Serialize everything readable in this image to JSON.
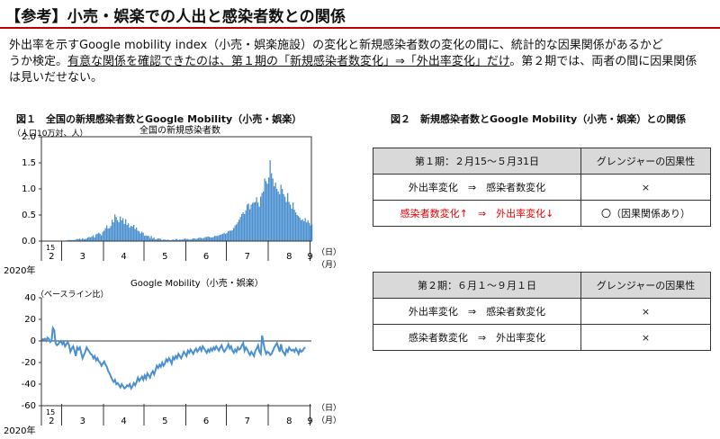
{
  "header": {
    "title": "【参考】小売・娯楽での人出と感染者数との関係",
    "intro_1": "外出率を示すGoogle mobility index（小売・娯楽施設）の変化と新規感染者数の変化の間に、統計的な因果関係があるかど",
    "intro_2a": "うか検定。",
    "intro_2b": "有意な関係を確認できたのは、第１期の「新規感染者数変化」⇒「外出率変化」だけ",
    "intro_2c": "。第２期では、両者の間に因果関係",
    "intro_3": "は見いだせない。"
  },
  "figure1": {
    "title": "図１　全国の新規感染者数とGoogle Mobility（小売・娯楽）",
    "year_label": "2020年",
    "day_label": "（日）",
    "month_unit_label": "（月）"
  },
  "figure2": {
    "title": "図２　新規感染者数とGoogle Mobility（小売・娯楽）との関係",
    "table1": {
      "headers": [
        "第１期：２月15～５月31日",
        "グレンジャーの因果性"
      ],
      "rows": [
        {
          "relation": "外出率変化　⇒　感染者数変化",
          "result": "×"
        },
        {
          "relation": "感染者数変化↑　⇒　外出率変化↓",
          "result": "〇（因果関係あり）"
        }
      ]
    },
    "table2": {
      "headers": [
        "第２期：６月１～９月１日",
        "グレンジャーの因果性"
      ],
      "rows": [
        {
          "relation": "外出率変化　⇒　感染者数変化",
          "result": "×"
        },
        {
          "relation": "感染者数変化　⇒　外出率変化",
          "result": "×"
        }
      ]
    }
  },
  "chart_data": [
    {
      "type": "bar",
      "title": "全国の新規感染者数",
      "ylabel": "（人口10万対、人）",
      "ylim": [
        0,
        2.0
      ],
      "yticks": [
        "0.0",
        "0.5",
        "1.0",
        "1.5",
        "2.0"
      ],
      "x_first_day_label": "15",
      "month_labels": [
        "2",
        "3",
        "4",
        "5",
        "6",
        "7",
        "8",
        "9"
      ],
      "month_start_days": [
        0,
        15,
        46,
        76,
        107,
        137,
        168,
        199
      ],
      "x_range": [
        0,
        200
      ],
      "color": "#4a8fd0",
      "grid": false,
      "values": [
        0.0,
        0.0,
        0.0,
        0.0,
        0.0,
        0.0,
        0.0,
        0.0,
        0.0,
        0.0,
        0.0,
        0.0,
        0.0,
        0.0,
        0.0,
        0.0,
        0.0,
        0.0,
        0.01,
        0.02,
        0.02,
        0.02,
        0.02,
        0.02,
        0.02,
        0.03,
        0.04,
        0.04,
        0.05,
        0.03,
        0.05,
        0.04,
        0.04,
        0.05,
        0.07,
        0.08,
        0.07,
        0.09,
        0.11,
        0.07,
        0.13,
        0.14,
        0.16,
        0.14,
        0.11,
        0.18,
        0.2,
        0.25,
        0.3,
        0.24,
        0.25,
        0.29,
        0.41,
        0.36,
        0.51,
        0.46,
        0.4,
        0.36,
        0.47,
        0.4,
        0.44,
        0.33,
        0.42,
        0.31,
        0.34,
        0.26,
        0.29,
        0.28,
        0.31,
        0.23,
        0.26,
        0.2,
        0.19,
        0.15,
        0.18,
        0.16,
        0.1,
        0.11,
        0.1,
        0.1,
        0.06,
        0.1,
        0.05,
        0.07,
        0.03,
        0.04,
        0.05,
        0.05,
        0.04,
        0.02,
        0.03,
        0.03,
        0.02,
        0.03,
        0.02,
        0.02,
        0.02,
        0.03,
        0.02,
        0.04,
        0.04,
        0.02,
        0.03,
        0.03,
        0.03,
        0.04,
        0.05,
        0.04,
        0.04,
        0.03,
        0.03,
        0.04,
        0.05,
        0.05,
        0.04,
        0.05,
        0.06,
        0.07,
        0.06,
        0.05,
        0.06,
        0.08,
        0.08,
        0.09,
        0.08,
        0.07,
        0.07,
        0.08,
        0.1,
        0.1,
        0.1,
        0.11,
        0.12,
        0.13,
        0.14,
        0.16,
        0.14,
        0.16,
        0.19,
        0.2,
        0.2,
        0.21,
        0.25,
        0.3,
        0.32,
        0.36,
        0.41,
        0.46,
        0.52,
        0.55,
        0.52,
        0.59,
        0.7,
        0.72,
        0.61,
        0.7,
        0.73,
        0.74,
        0.75,
        0.84,
        0.74,
        0.66,
        0.85,
        0.92,
        0.95,
        1.2,
        1.15,
        1.1,
        1.22,
        1.55,
        1.3,
        1.2,
        1.05,
        1.12,
        1.0,
        0.95,
        0.9,
        1.08,
        1.0,
        0.9,
        0.85,
        0.75,
        0.92,
        0.75,
        0.7,
        0.62,
        0.74,
        0.6,
        0.55,
        0.5,
        0.48,
        0.45,
        0.4,
        0.42,
        0.38,
        0.44,
        0.36,
        0.4,
        0.35,
        0.3,
        0.32
      ]
    },
    {
      "type": "line",
      "title": "Google Mobility（小売・娯楽）",
      "ylabel": "（ベースライン比）",
      "ylim": [
        -60,
        40
      ],
      "yticks": [
        "-60",
        "-40",
        "-20",
        "0",
        "20",
        "40"
      ],
      "x_first_day_label": "15",
      "month_labels": [
        "2",
        "3",
        "4",
        "5",
        "6",
        "7",
        "8",
        "9"
      ],
      "month_start_days": [
        0,
        15,
        46,
        76,
        107,
        137,
        168,
        199
      ],
      "x_range": [
        0,
        200
      ],
      "color": "#4a8fd0",
      "grid": false,
      "values": [
        2,
        1,
        2,
        0,
        3,
        2,
        -1,
        0,
        12,
        10,
        -2,
        -4,
        -3,
        -1,
        0,
        -3,
        -1,
        -5,
        -3,
        -1,
        -4,
        -10,
        -7,
        -5,
        -9,
        -14,
        -6,
        -8,
        -6,
        -11,
        -16,
        -13,
        -10,
        -6,
        -8,
        -10,
        -12,
        -13,
        -16,
        -14,
        -18,
        -16,
        -19,
        -20,
        -23,
        -21,
        -19,
        -22,
        -24,
        -28,
        -30,
        -33,
        -36,
        -38,
        -36,
        -40,
        -39,
        -41,
        -43,
        -40,
        -42,
        -44,
        -43,
        -41,
        -42,
        -40,
        -44,
        -42,
        -39,
        -41,
        -38,
        -34,
        -37,
        -35,
        -33,
        -36,
        -32,
        -35,
        -30,
        -32,
        -34,
        -30,
        -28,
        -31,
        -27,
        -23,
        -25,
        -22,
        -24,
        -20,
        -23,
        -21,
        -17,
        -19,
        -16,
        -18,
        -21,
        -15,
        -17,
        -14,
        -16,
        -12,
        -14,
        -16,
        -13,
        -10,
        -12,
        -14,
        -9,
        -11,
        -8,
        -10,
        -12,
        -9,
        -7,
        -10,
        -8,
        -6,
        -9,
        -5,
        -7,
        -9,
        -11,
        -8,
        -10,
        -7,
        -9,
        -6,
        -8,
        -5,
        -7,
        -9,
        -6,
        -4,
        -8,
        -10,
        -8,
        -6,
        -3,
        -7,
        -5,
        -9,
        -11,
        -8,
        -10,
        -6,
        -8,
        -7,
        -4,
        -2,
        -9,
        -6,
        -8,
        -11,
        -13,
        -10,
        -12,
        -14,
        -9,
        -7,
        -4,
        -10,
        -12,
        5,
        -2,
        -8,
        -12,
        -10,
        -11,
        -13,
        -12,
        -9,
        -6,
        -4,
        -2,
        -6,
        -10,
        -3,
        -9,
        -11,
        -13,
        -8,
        -10,
        -6,
        -8,
        -9,
        -8,
        -10,
        -7,
        -9,
        -12,
        -8,
        -10,
        -9,
        -7,
        -6
      ]
    }
  ]
}
